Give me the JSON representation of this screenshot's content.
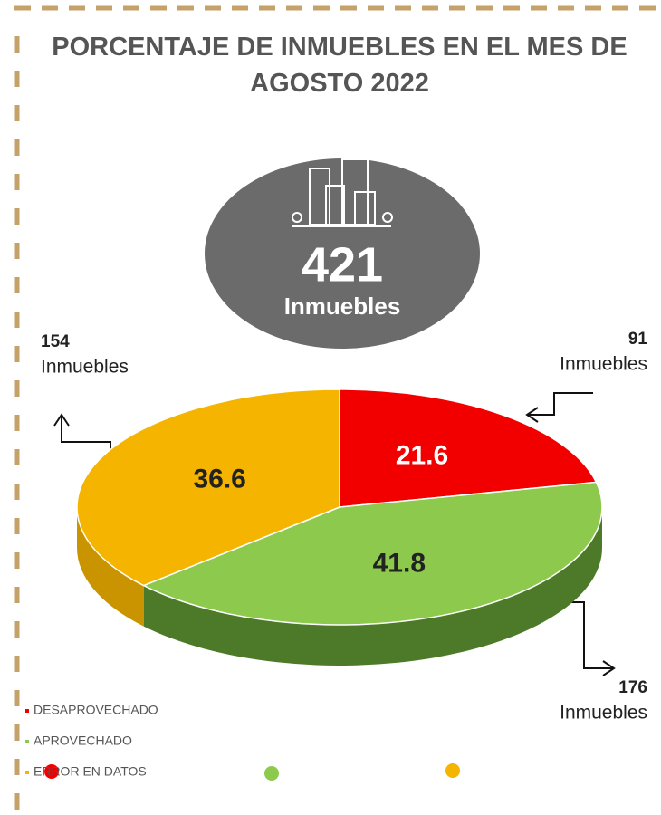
{
  "chart_data": {
    "type": "pie",
    "title": "PORCENTAJE DE INMUEBLES EN EL MES DE AGOSTO 2022",
    "total": 421,
    "unit_label": "Inmuebles",
    "categories": [
      "DESAPROVECHADO",
      "APROVECHADO",
      "ERROR EN DATOS"
    ],
    "values": [
      21.6,
      41.8,
      36.6
    ],
    "counts": [
      91,
      176,
      154
    ],
    "colors": [
      "#f20000",
      "#8cc94c",
      "#f4b400"
    ],
    "side_colors": [
      "#a00000",
      "#4d7a28",
      "#c99400"
    ]
  }
}
